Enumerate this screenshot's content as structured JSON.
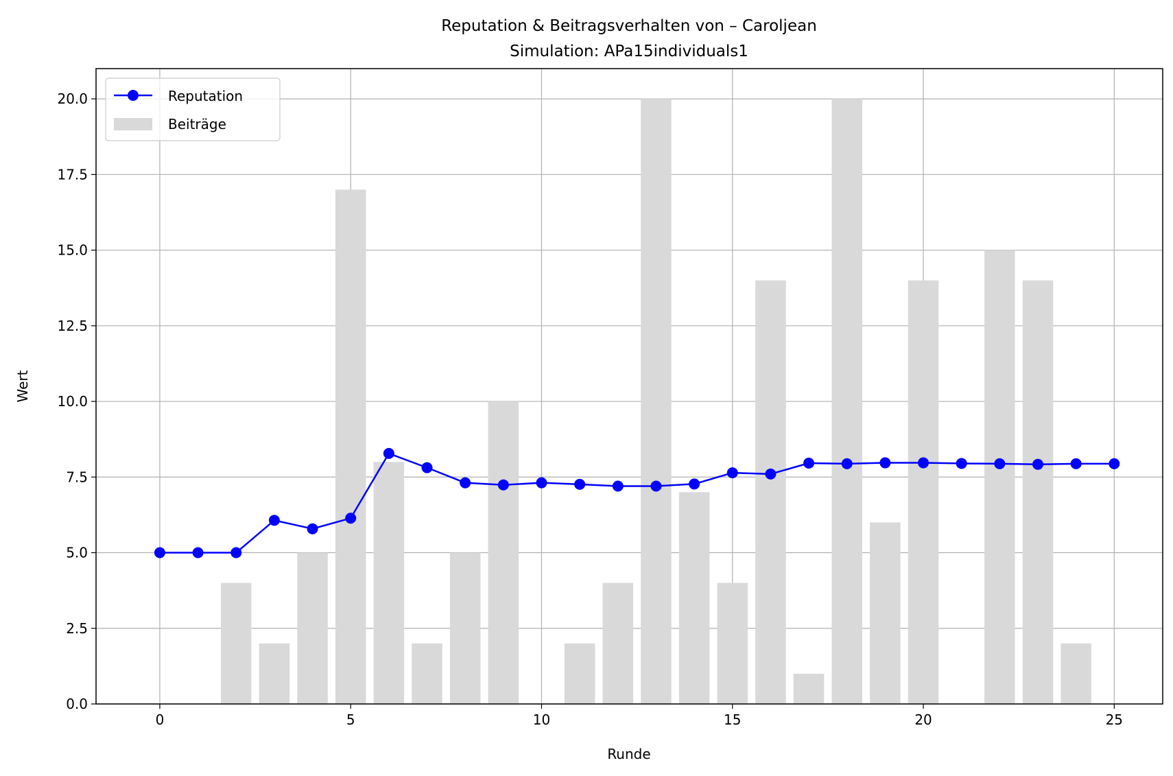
{
  "chart_data": {
    "type": "bar+line",
    "title": "Reputation & Beitragsverhalten von – Caroljean",
    "subtitle": "Simulation: APa15individuals1",
    "xlabel": "Runde",
    "ylabel": "Wert",
    "xlim": [
      -1.67,
      26.27
    ],
    "ylim": [
      0,
      21
    ],
    "x_ticks": [
      0,
      5,
      10,
      15,
      20,
      25
    ],
    "y_ticks": [
      0.0,
      2.5,
      5.0,
      7.5,
      10.0,
      12.5,
      15.0,
      17.5,
      20.0
    ],
    "grid": true,
    "legend_position": "upper left",
    "x": [
      0,
      1,
      2,
      3,
      4,
      5,
      6,
      7,
      8,
      9,
      10,
      11,
      12,
      13,
      14,
      15,
      16,
      17,
      18,
      19,
      20,
      21,
      22,
      23,
      24,
      25
    ],
    "series": [
      {
        "name": "Reputation",
        "kind": "line",
        "color": "#0000ff",
        "marker": "circle",
        "values": [
          5.0,
          5.0,
          5.0,
          6.07,
          5.79,
          6.14,
          8.28,
          7.81,
          7.31,
          7.24,
          7.31,
          7.26,
          7.2,
          7.2,
          7.27,
          7.64,
          7.6,
          7.96,
          7.94,
          7.97,
          7.97,
          7.95,
          7.94,
          7.92,
          7.94,
          7.94
        ]
      },
      {
        "name": "Beiträge",
        "kind": "bar",
        "color": "#d9d9d9",
        "values": [
          0,
          0,
          4,
          2,
          5,
          17,
          8,
          2,
          5,
          10,
          0,
          2,
          4,
          20,
          7,
          4,
          14,
          1,
          20,
          6,
          14,
          0,
          15,
          14,
          2,
          0
        ]
      }
    ]
  }
}
